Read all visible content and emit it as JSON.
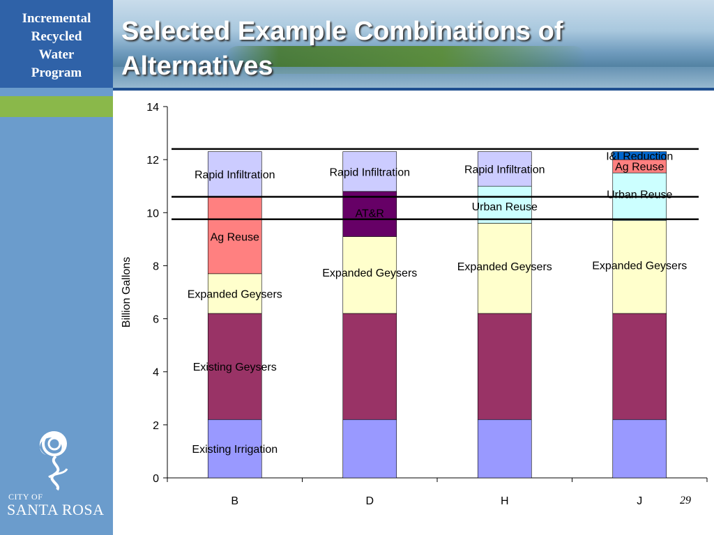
{
  "sidebar": {
    "program_title_lines": [
      "Incremental",
      "Recycled",
      "Water",
      "Program"
    ],
    "logo_city_of": "CITY OF",
    "logo_city_name": "SANTA ROSA"
  },
  "slide": {
    "title": "Selected Example Combinations of Alternatives",
    "page_number": "29"
  },
  "colors": {
    "Existing Irrigation": "#9999ff",
    "Existing Geysers": "#993366",
    "Expanded Geysers": "#ffffcc",
    "Ag Reuse": "#ff8080",
    "AT&R": "#660066",
    "Urban Reuse": "#ccffff",
    "Rapid Infiltration": "#ccccff",
    "I&I Reduction": "#0066cc"
  },
  "chart_data": {
    "type": "bar",
    "stacked": true,
    "categories": [
      "B",
      "D",
      "H",
      "J"
    ],
    "ylabel": "Billion Gallons",
    "ylim": [
      0,
      14
    ],
    "yticks": [
      0,
      2,
      4,
      6,
      8,
      10,
      12,
      14
    ],
    "stacks": [
      {
        "category": "B",
        "segments": [
          {
            "name": "Existing Irrigation",
            "value": 2.2
          },
          {
            "name": "Existing Geysers",
            "value": 4.0
          },
          {
            "name": "Expanded Geysers",
            "value": 1.5
          },
          {
            "name": "Ag Reuse",
            "value": 2.9
          },
          {
            "name": "Rapid Infiltration",
            "value": 1.7
          }
        ]
      },
      {
        "category": "D",
        "segments": [
          {
            "name": "Existing Irrigation",
            "value": 2.2
          },
          {
            "name": "Existing Geysers",
            "value": 4.0
          },
          {
            "name": "Expanded Geysers",
            "value": 2.9
          },
          {
            "name": "AT&R",
            "value": 1.7
          },
          {
            "name": "Rapid Infiltration",
            "value": 1.5
          }
        ]
      },
      {
        "category": "H",
        "segments": [
          {
            "name": "Existing Irrigation",
            "value": 2.2
          },
          {
            "name": "Existing Geysers",
            "value": 4.0
          },
          {
            "name": "Expanded Geysers",
            "value": 3.4
          },
          {
            "name": "Urban Reuse",
            "value": 1.4
          },
          {
            "name": "Rapid Infiltration",
            "value": 1.3
          }
        ]
      },
      {
        "category": "J",
        "segments": [
          {
            "name": "Existing Irrigation",
            "value": 2.2
          },
          {
            "name": "Existing Geysers",
            "value": 4.0
          },
          {
            "name": "Expanded Geysers",
            "value": 3.5
          },
          {
            "name": "Urban Reuse",
            "value": 1.8
          },
          {
            "name": "Ag Reuse",
            "value": 0.5
          },
          {
            "name": "I&I Reduction",
            "value": 0.3
          }
        ]
      }
    ],
    "reference_lines": [
      12.4,
      10.6,
      9.75
    ],
    "annotations": [
      {
        "text": "Rapid Infiltration",
        "category": "B",
        "y": 11.45
      },
      {
        "text": "Ag Reuse",
        "category": "B",
        "y": 9.1
      },
      {
        "text": "Expanded Geysers",
        "category": "B",
        "y": 6.95
      },
      {
        "text": "Existing Geysers",
        "category": "B",
        "y": 4.2
      },
      {
        "text": "Existing Irrigation",
        "category": "B",
        "y": 1.1
      },
      {
        "text": "Rapid Infiltration",
        "category": "D",
        "y": 11.55
      },
      {
        "text": "AT&R",
        "category": "D",
        "y": 10.0
      },
      {
        "text": "Expanded Geysers",
        "category": "D",
        "y": 7.75
      },
      {
        "text": "Rapid Infiltration",
        "category": "H",
        "y": 11.65
      },
      {
        "text": "Urban Reuse",
        "category": "H",
        "y": 10.25
      },
      {
        "text": "Expanded Geysers",
        "category": "H",
        "y": 7.98
      },
      {
        "text": "I&I Reduction",
        "category": "J",
        "y": 12.15
      },
      {
        "text": "Ag Reuse",
        "category": "J",
        "y": 11.75
      },
      {
        "text": "Urban Reuse",
        "category": "J",
        "y": 10.7
      },
      {
        "text": "Expanded Geysers",
        "category": "J",
        "y": 8.03
      }
    ]
  }
}
